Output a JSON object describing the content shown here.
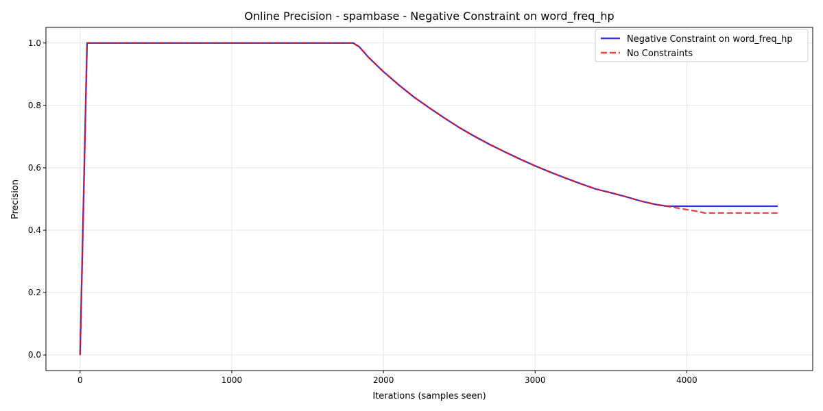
{
  "chart_data": {
    "type": "line",
    "title": "Online Precision - spambase - Negative Constraint on word_freq_hp",
    "xlabel": "Iterations (samples seen)",
    "ylabel": "Precision",
    "xlim": [
      -225,
      4830
    ],
    "ylim": [
      -0.05,
      1.05
    ],
    "xticks": [
      0,
      1000,
      2000,
      3000,
      4000
    ],
    "yticks": [
      0.0,
      0.2,
      0.4,
      0.6,
      0.8,
      1.0
    ],
    "grid": true,
    "legend_position": "upper right",
    "series": [
      {
        "name": "Negative Constraint on word_freq_hp",
        "color": "#0000dd",
        "style": "solid",
        "points": [
          [
            0,
            0.0
          ],
          [
            46,
            1.0
          ],
          [
            1800,
            1.0
          ],
          [
            1840,
            0.988
          ],
          [
            1900,
            0.955
          ],
          [
            2000,
            0.908
          ],
          [
            2100,
            0.866
          ],
          [
            2200,
            0.827
          ],
          [
            2300,
            0.793
          ],
          [
            2400,
            0.76
          ],
          [
            2500,
            0.729
          ],
          [
            2600,
            0.701
          ],
          [
            2700,
            0.675
          ],
          [
            2800,
            0.651
          ],
          [
            2900,
            0.628
          ],
          [
            3000,
            0.606
          ],
          [
            3100,
            0.586
          ],
          [
            3200,
            0.567
          ],
          [
            3300,
            0.549
          ],
          [
            3400,
            0.532
          ],
          [
            3500,
            0.52
          ],
          [
            3600,
            0.507
          ],
          [
            3700,
            0.493
          ],
          [
            3800,
            0.482
          ],
          [
            3870,
            0.477
          ],
          [
            4600,
            0.477
          ]
        ]
      },
      {
        "name": "No Constraints",
        "color": "#ee1111",
        "style": "dashed",
        "points": [
          [
            0,
            0.0
          ],
          [
            46,
            1.0
          ],
          [
            1800,
            1.0
          ],
          [
            1840,
            0.988
          ],
          [
            1900,
            0.955
          ],
          [
            2000,
            0.908
          ],
          [
            2100,
            0.866
          ],
          [
            2200,
            0.827
          ],
          [
            2300,
            0.793
          ],
          [
            2400,
            0.76
          ],
          [
            2500,
            0.729
          ],
          [
            2600,
            0.701
          ],
          [
            2700,
            0.675
          ],
          [
            2800,
            0.651
          ],
          [
            2900,
            0.628
          ],
          [
            3000,
            0.606
          ],
          [
            3100,
            0.586
          ],
          [
            3200,
            0.567
          ],
          [
            3300,
            0.549
          ],
          [
            3400,
            0.532
          ],
          [
            3500,
            0.52
          ],
          [
            3600,
            0.507
          ],
          [
            3700,
            0.493
          ],
          [
            3800,
            0.482
          ],
          [
            3870,
            0.477
          ],
          [
            3950,
            0.47
          ],
          [
            4050,
            0.462
          ],
          [
            4120,
            0.455
          ],
          [
            4600,
            0.455
          ]
        ]
      }
    ]
  }
}
